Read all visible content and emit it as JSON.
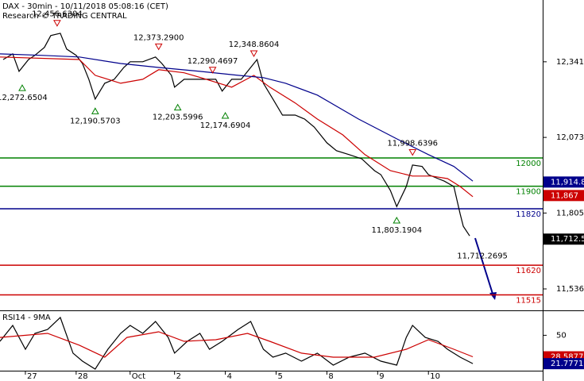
{
  "chart_data": [
    {
      "type": "line",
      "title": "DAX - 30min - 10/11/2018 05:08:16 (CET)",
      "subtitle": "Research © TRADING CENTRAL",
      "xlim": [
        0,
        171
      ],
      "ylim": [
        11460,
        12560
      ],
      "yticks": [
        {
          "value": 12341,
          "label": "12,341"
        },
        {
          "value": 12073,
          "label": "12,073"
        },
        {
          "value": 11805,
          "label": "11,805"
        },
        {
          "value": 11536,
          "label": "11,536"
        }
      ],
      "series": [
        {
          "color": "#000000",
          "x": [
            1,
            4,
            6,
            9,
            11,
            14,
            16,
            19,
            21,
            24,
            26,
            28,
            30,
            33,
            36,
            39,
            41,
            45,
            49,
            51,
            54,
            55,
            58,
            61,
            65,
            68,
            70,
            73,
            76,
            79,
            81,
            83,
            86,
            89,
            93,
            96,
            99,
            103,
            106,
            110,
            114,
            118,
            120,
            123,
            125,
            128,
            130,
            133,
            135,
            138,
            140,
            143,
            145,
            146,
            148
          ],
          "values": [
            12349,
            12369,
            12307,
            12349,
            12364,
            12392,
            12434,
            12442,
            12386,
            12364,
            12335,
            12279,
            12209,
            12265,
            12279,
            12321,
            12341,
            12341,
            12358,
            12335,
            12293,
            12251,
            12279,
            12279,
            12279,
            12279,
            12237,
            12279,
            12279,
            12321,
            12349,
            12265,
            12209,
            12152,
            12152,
            12138,
            12110,
            12054,
            12026,
            12012,
            11997,
            11955,
            11941,
            11885,
            11828,
            11899,
            11975,
            11970,
            11941,
            11927,
            11918,
            11899,
            11801,
            11758,
            11724
          ]
        },
        {
          "color": "#cc0000",
          "x": [
            0,
            25,
            30,
            38,
            45,
            50,
            58,
            65,
            73,
            80,
            85,
            93,
            100,
            108,
            115,
            123,
            130,
            136,
            141,
            145,
            149
          ],
          "values": [
            12358,
            12349,
            12293,
            12265,
            12279,
            12313,
            12302,
            12279,
            12251,
            12293,
            12251,
            12195,
            12138,
            12082,
            12012,
            11955,
            11936,
            11936,
            11927,
            11899,
            11863
          ]
        },
        {
          "color": "#00008b",
          "x": [
            0,
            13,
            25,
            38,
            50,
            63,
            75,
            83,
            90,
            100,
            113,
            125,
            135,
            143,
            149
          ],
          "values": [
            12369,
            12364,
            12358,
            12335,
            12321,
            12307,
            12293,
            12285,
            12265,
            12223,
            12138,
            12068,
            12012,
            11970,
            11918
          ]
        }
      ],
      "levels": [
        {
          "value": 12000,
          "color": "#008000"
        },
        {
          "value": 11900,
          "color": "#008000"
        },
        {
          "value": 11820,
          "color": "#00008b"
        },
        {
          "value": 11620,
          "color": "#cc0000"
        },
        {
          "value": 11515,
          "color": "#cc0000"
        }
      ],
      "price_tags": [
        {
          "value": 11914.8,
          "label": "11,914.8",
          "color": "#00008b"
        },
        {
          "value": 11867,
          "label": "11,867",
          "color": "#cc0000"
        },
        {
          "value": 11712.5,
          "label": "11,712.5",
          "color": "#000000"
        }
      ],
      "annotations": [
        {
          "x": 18,
          "value": 12456.6304,
          "label": "12,456.6304",
          "kind": "peak"
        },
        {
          "x": 7,
          "value": 12272.6504,
          "label": "12,272.6504",
          "kind": "trough"
        },
        {
          "x": 30,
          "value": 12190.5703,
          "label": "12,190.5703",
          "kind": "trough"
        },
        {
          "x": 50,
          "value": 12373.29,
          "label": "12,373.2900",
          "kind": "peak"
        },
        {
          "x": 56,
          "value": 12203.5996,
          "label": "12,203.5996",
          "kind": "trough"
        },
        {
          "x": 67,
          "value": 12290.4697,
          "label": "12,290.4697",
          "kind": "peak"
        },
        {
          "x": 71,
          "value": 12174.6904,
          "label": "12,174.6904",
          "kind": "trough"
        },
        {
          "x": 80,
          "value": 12348.8604,
          "label": "12,348.8604",
          "kind": "peak"
        },
        {
          "x": 130,
          "value": 11998.6396,
          "label": "11,998.6396",
          "kind": "peak"
        },
        {
          "x": 125,
          "value": 11803.1904,
          "label": "11,803.1904",
          "kind": "trough"
        },
        {
          "x": 152,
          "value": 11712.2695,
          "label": "11,712.2695",
          "kind": "label"
        }
      ]
    },
    {
      "type": "line",
      "title": "RSI14 - 9MA",
      "xlim": [
        0,
        171
      ],
      "ylim": [
        14,
        74
      ],
      "yticks": [
        50
      ],
      "xticks": [
        {
          "value": 8,
          "label": "27"
        },
        {
          "value": 24,
          "label": "28"
        },
        {
          "value": 41,
          "label": "Oct"
        },
        {
          "value": 55,
          "label": "2"
        },
        {
          "value": 71,
          "label": "4"
        },
        {
          "value": 87,
          "label": "5"
        },
        {
          "value": 103,
          "label": "8"
        },
        {
          "value": 119,
          "label": "9"
        },
        {
          "value": 135,
          "label": "10"
        }
      ],
      "series": [
        {
          "color": "#000000",
          "x": [
            0,
            4,
            8,
            11,
            15,
            19,
            23,
            26,
            30,
            34,
            38,
            41,
            45,
            49,
            53,
            55,
            59,
            63,
            66,
            70,
            75,
            79,
            83,
            86,
            90,
            95,
            100,
            105,
            110,
            115,
            120,
            125,
            128,
            130,
            134,
            138,
            141,
            145,
            149
          ],
          "values": [
            44,
            59.8,
            36.1,
            51.9,
            55.8,
            67.7,
            32.2,
            24.3,
            16.4,
            36.1,
            51.9,
            59.8,
            51.9,
            63.7,
            47.9,
            32.2,
            44,
            51.9,
            36.1,
            44,
            55.8,
            63.7,
            36.1,
            28.2,
            32.2,
            24.3,
            32.2,
            20.3,
            28.2,
            32.2,
            24.3,
            20.3,
            47.9,
            59.8,
            47.9,
            44,
            36.1,
            28.2,
            21.8
          ]
        },
        {
          "color": "#cc0000",
          "x": [
            0,
            15,
            25,
            33,
            40,
            50,
            58,
            68,
            78,
            85,
            95,
            105,
            118,
            128,
            135,
            143,
            149
          ],
          "values": [
            47.9,
            51.9,
            40.1,
            28.2,
            47.9,
            53.5,
            44,
            45.6,
            51.9,
            44,
            32.2,
            28.2,
            28.2,
            36.1,
            45.6,
            36.1,
            28.6
          ]
        }
      ],
      "price_tags": [
        {
          "value": 28.5877,
          "label": "28.5877",
          "color": "#cc0000"
        },
        {
          "value": 21.7771,
          "label": "21.7771",
          "color": "#00008b"
        }
      ]
    }
  ]
}
